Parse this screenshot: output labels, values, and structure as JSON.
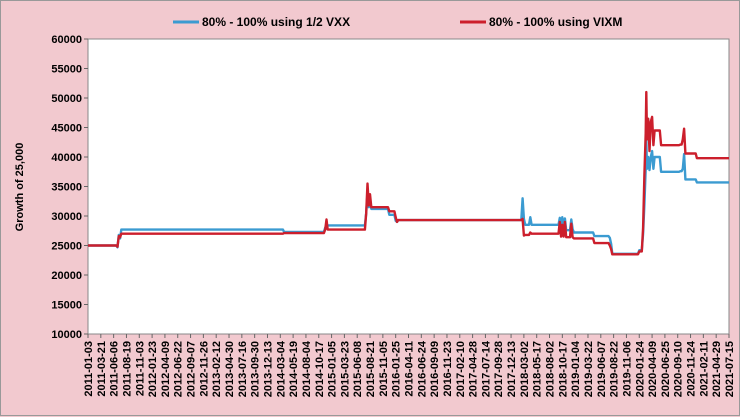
{
  "chart_data": {
    "type": "line",
    "ylabel": "Growth of 25,000",
    "ylim": [
      10000,
      60000
    ],
    "yticks": [
      10000,
      15000,
      20000,
      25000,
      30000,
      35000,
      40000,
      45000,
      50000,
      55000,
      60000
    ],
    "grid": false,
    "legend_position": "top",
    "x_categories": [
      "2011-01-03",
      "2011-03-21",
      "2011-06-06",
      "2011-08-19",
      "2011-11-03",
      "2012-01-23",
      "2012-04-09",
      "2012-06-22",
      "2012-09-07",
      "2012-11-26",
      "2013-02-12",
      "2013-04-30",
      "2013-07-16",
      "2013-09-30",
      "2013-12-13",
      "2014-03-04",
      "2014-05-19",
      "2014-08-04",
      "2014-10-17",
      "2015-01-05",
      "2015-03-23",
      "2015-06-08",
      "2015-08-21",
      "2015-11-05",
      "2016-01-25",
      "2016-04-11",
      "2016-06-24",
      "2016-09-09",
      "2016-11-23",
      "2017-02-10",
      "2017-04-28",
      "2017-07-14",
      "2017-09-28",
      "2017-12-13",
      "2018-03-02",
      "2018-05-17",
      "2018-08-02",
      "2018-10-17",
      "2019-01-04",
      "2019-03-22",
      "2019-06-07",
      "2019-08-22",
      "2019-11-06",
      "2020-01-24",
      "2020-04-09",
      "2020-06-25",
      "2020-09-10",
      "2020-11-24",
      "2021-02-11",
      "2021-04-29",
      "2021-07-15"
    ],
    "series": [
      {
        "name": "80% - 100% using 1/2 VXX",
        "color": "#3b9bd1",
        "points": [
          [
            0,
            25000
          ],
          [
            2.2,
            25000
          ],
          [
            2.3,
            24700
          ],
          [
            2.4,
            26800
          ],
          [
            2.5,
            26200
          ],
          [
            2.6,
            27700
          ],
          [
            15.2,
            27700
          ],
          [
            15.3,
            27300
          ],
          [
            18.4,
            27300
          ],
          [
            18.5,
            28000
          ],
          [
            18.6,
            28400
          ],
          [
            21.6,
            28400
          ],
          [
            21.7,
            30500
          ],
          [
            21.8,
            34000
          ],
          [
            21.9,
            31500
          ],
          [
            22.0,
            33000
          ],
          [
            22.1,
            31200
          ],
          [
            23.4,
            31200
          ],
          [
            23.5,
            30200
          ],
          [
            23.9,
            30200
          ],
          [
            24.0,
            29200
          ],
          [
            24.1,
            29000
          ],
          [
            24.2,
            29300
          ],
          [
            33.8,
            29300
          ],
          [
            33.9,
            33000
          ],
          [
            34.0,
            29500
          ],
          [
            34.1,
            28500
          ],
          [
            34.4,
            28500
          ],
          [
            34.5,
            29800
          ],
          [
            34.6,
            28500
          ],
          [
            36.7,
            28500
          ],
          [
            36.8,
            29700
          ],
          [
            36.9,
            27600
          ],
          [
            37.0,
            29800
          ],
          [
            37.1,
            27600
          ],
          [
            37.2,
            29600
          ],
          [
            37.3,
            27600
          ],
          [
            37.6,
            27600
          ],
          [
            37.7,
            29400
          ],
          [
            37.8,
            27800
          ],
          [
            37.9,
            27200
          ],
          [
            39.4,
            27200
          ],
          [
            39.5,
            26600
          ],
          [
            40.6,
            26600
          ],
          [
            40.7,
            26300
          ],
          [
            40.8,
            25300
          ],
          [
            40.9,
            23600
          ],
          [
            42.9,
            23600
          ],
          [
            43.0,
            24200
          ],
          [
            43.2,
            24200
          ],
          [
            43.3,
            27000
          ],
          [
            43.4,
            32000
          ],
          [
            43.5,
            38000
          ],
          [
            43.55,
            43000
          ],
          [
            43.6,
            38000
          ],
          [
            43.7,
            40000
          ],
          [
            43.8,
            37800
          ],
          [
            43.9,
            40000
          ],
          [
            44.0,
            41000
          ],
          [
            44.1,
            38000
          ],
          [
            44.2,
            40000
          ],
          [
            44.6,
            40000
          ],
          [
            44.7,
            37500
          ],
          [
            46.1,
            37500
          ],
          [
            46.2,
            37600
          ],
          [
            46.3,
            37600
          ],
          [
            46.4,
            38000
          ],
          [
            46.5,
            40500
          ],
          [
            46.6,
            36200
          ],
          [
            47.4,
            36200
          ],
          [
            47.5,
            35700
          ],
          [
            50,
            35700
          ]
        ]
      },
      {
        "name": "80% - 100% using VIXM",
        "color": "#cc1f2c",
        "points": [
          [
            0,
            25000
          ],
          [
            2.2,
            25000
          ],
          [
            2.3,
            24800
          ],
          [
            2.4,
            26600
          ],
          [
            2.5,
            26400
          ],
          [
            2.6,
            27000
          ],
          [
            15.2,
            27000
          ],
          [
            15.3,
            27100
          ],
          [
            18.4,
            27100
          ],
          [
            18.5,
            27700
          ],
          [
            18.6,
            29400
          ],
          [
            18.7,
            27700
          ],
          [
            21.6,
            27700
          ],
          [
            21.7,
            30500
          ],
          [
            21.8,
            35500
          ],
          [
            21.9,
            31800
          ],
          [
            22.0,
            33700
          ],
          [
            22.1,
            31500
          ],
          [
            23.4,
            31500
          ],
          [
            23.5,
            30800
          ],
          [
            23.9,
            30800
          ],
          [
            24.0,
            29800
          ],
          [
            24.1,
            29000
          ],
          [
            24.2,
            29300
          ],
          [
            33.8,
            29300
          ],
          [
            33.9,
            29500
          ],
          [
            34.0,
            26700
          ],
          [
            34.1,
            26800
          ],
          [
            34.4,
            26800
          ],
          [
            34.5,
            27200
          ],
          [
            34.6,
            27000
          ],
          [
            36.7,
            27000
          ],
          [
            36.8,
            29000
          ],
          [
            36.9,
            26500
          ],
          [
            37.0,
            28500
          ],
          [
            37.1,
            26500
          ],
          [
            37.2,
            29000
          ],
          [
            37.3,
            26400
          ],
          [
            37.6,
            26400
          ],
          [
            37.7,
            28700
          ],
          [
            37.8,
            26400
          ],
          [
            37.9,
            26200
          ],
          [
            39.4,
            26200
          ],
          [
            39.5,
            25400
          ],
          [
            40.6,
            25400
          ],
          [
            40.7,
            25000
          ],
          [
            40.8,
            24400
          ],
          [
            40.9,
            23500
          ],
          [
            42.9,
            23500
          ],
          [
            43.0,
            24000
          ],
          [
            43.2,
            24000
          ],
          [
            43.3,
            28000
          ],
          [
            43.4,
            37000
          ],
          [
            43.5,
            44000
          ],
          [
            43.55,
            51000
          ],
          [
            43.6,
            43000
          ],
          [
            43.7,
            46500
          ],
          [
            43.8,
            41000
          ],
          [
            43.9,
            46000
          ],
          [
            44.0,
            46800
          ],
          [
            44.1,
            42000
          ],
          [
            44.2,
            44500
          ],
          [
            44.6,
            44500
          ],
          [
            44.7,
            42000
          ],
          [
            46.1,
            42000
          ],
          [
            46.2,
            42100
          ],
          [
            46.3,
            42100
          ],
          [
            46.4,
            43000
          ],
          [
            46.5,
            44800
          ],
          [
            46.6,
            40600
          ],
          [
            47.4,
            40600
          ],
          [
            47.5,
            39800
          ],
          [
            50,
            39800
          ]
        ]
      }
    ]
  }
}
